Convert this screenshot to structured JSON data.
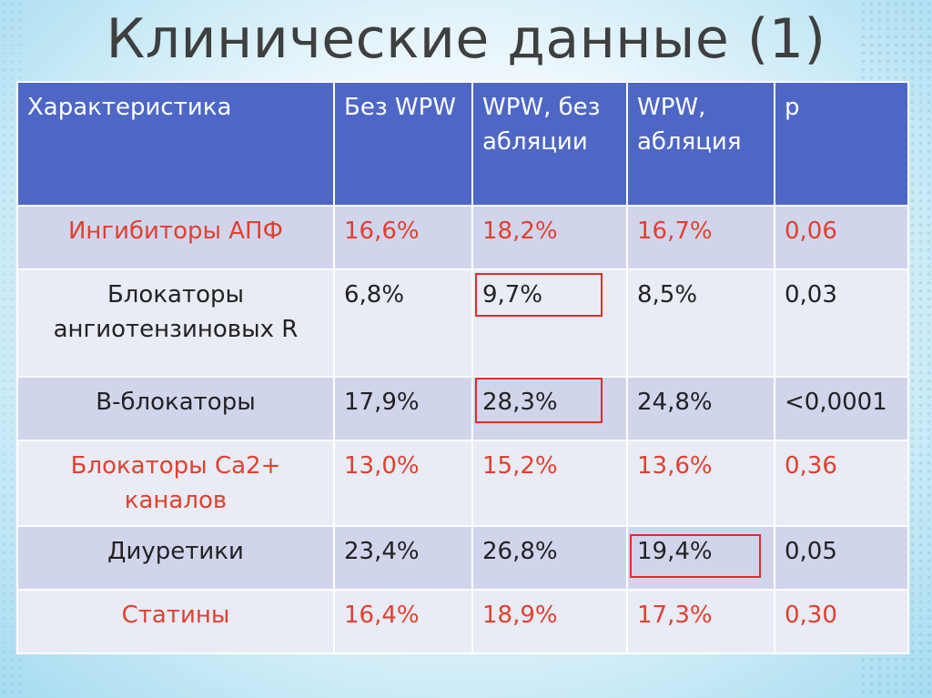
{
  "title": "Клинические данные (1)",
  "table": {
    "headers": [
      "Характеристика",
      "Без WPW",
      "WPW, без абляции",
      "WPW, абляция",
      "p"
    ],
    "rows": [
      {
        "label": "Ингибиторы АПФ",
        "values": [
          "16,6%",
          "18,2%",
          "16,7%",
          "0,06"
        ],
        "color": "#e0412f"
      },
      {
        "label": "Блокаторы ангиотензиновых R",
        "values": [
          "6,8%",
          "9,7%",
          "8,5%",
          "0,03"
        ],
        "color": "#222222"
      },
      {
        "label": "В-блокаторы",
        "values": [
          "17,9%",
          "28,3%",
          "24,8%",
          "<0,0001"
        ],
        "color": "#222222"
      },
      {
        "label": "Блокаторы Са2+ каналов",
        "values": [
          "13,0%",
          "15,2%",
          "13,6%",
          "0,36"
        ],
        "color": "#e0412f"
      },
      {
        "label": "Диуретики",
        "values": [
          "23,4%",
          "26,8%",
          "19,4%",
          "0,05"
        ],
        "color": "#222222"
      },
      {
        "label": "Статины",
        "values": [
          "16,4%",
          "18,9%",
          "17,3%",
          "0,30"
        ],
        "color": "#e0412f"
      }
    ],
    "highlighted_cells": [
      "9,7%",
      "28,3%",
      "19,4%"
    ],
    "colors": {
      "header_bg": "#4e67c6",
      "row_light": "#e9ebf5",
      "row_dark": "#d1d5ec",
      "highlight_border": "#e32b2b"
    }
  }
}
